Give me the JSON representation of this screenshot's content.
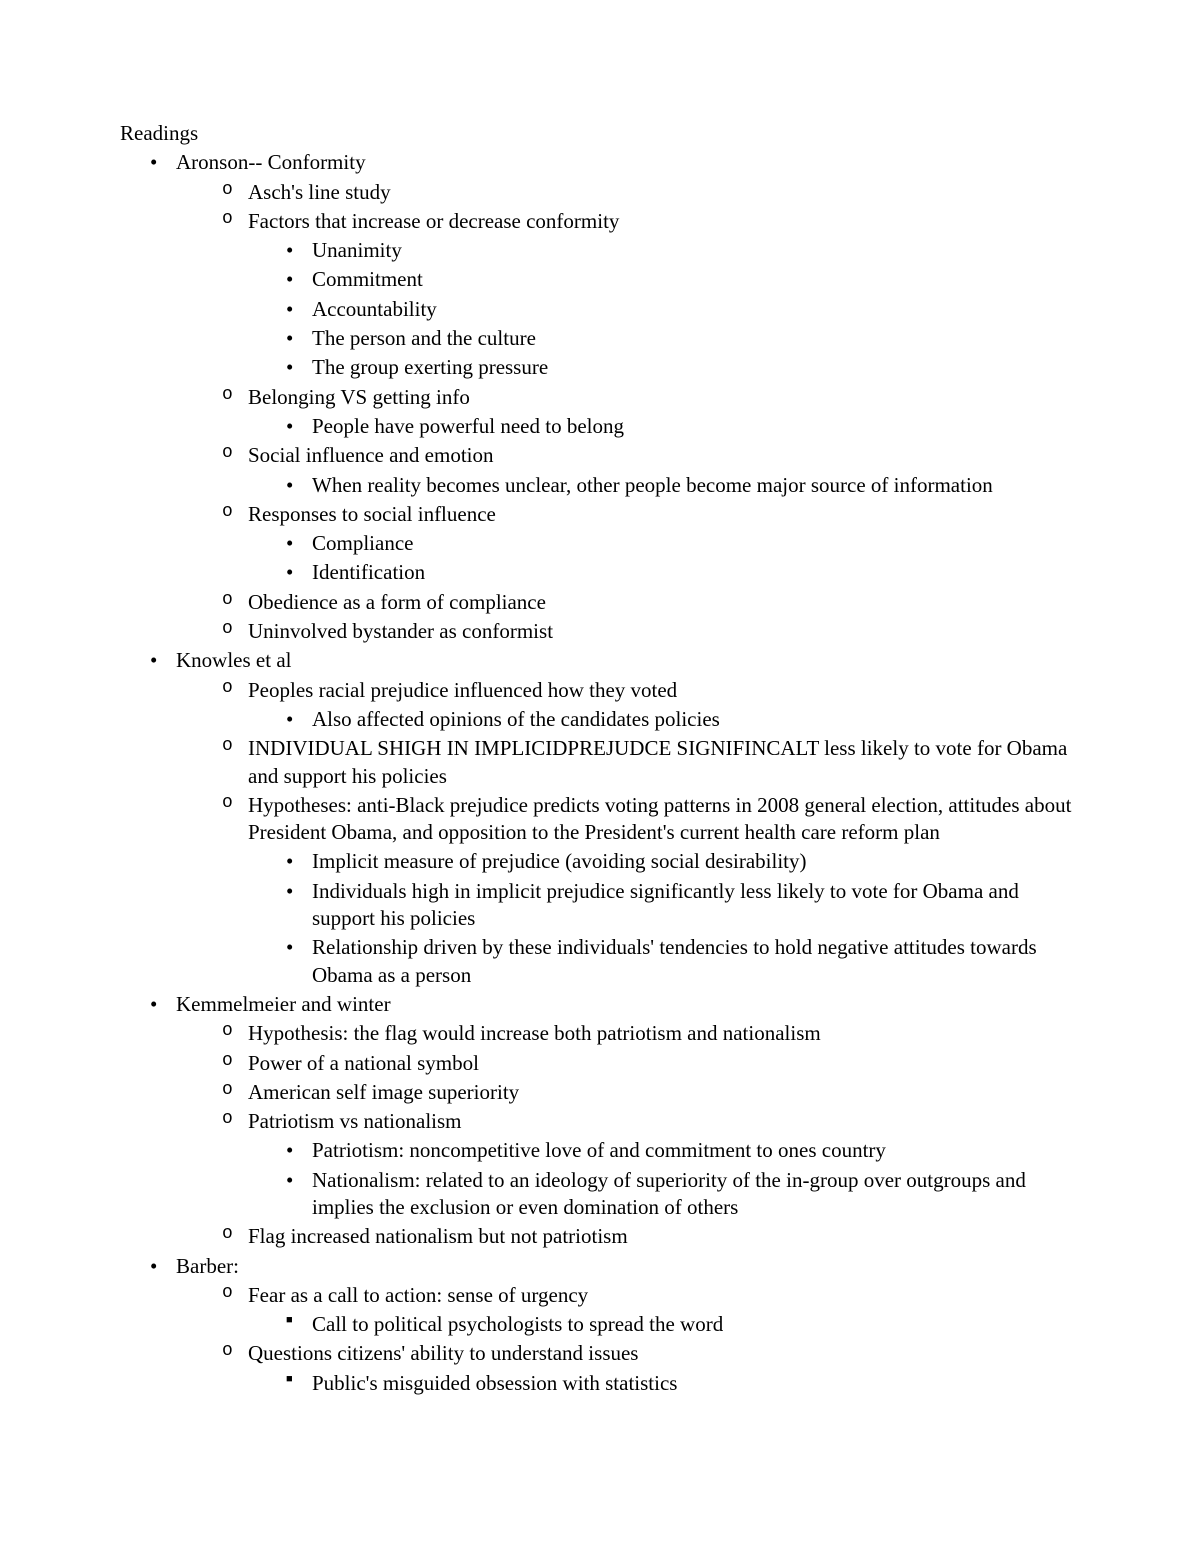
{
  "heading": "Readings",
  "items": [
    {
      "text": "Aronson-- Conformity",
      "children": [
        {
          "text": "Asch's line study"
        },
        {
          "text": "Factors that increase or decrease conformity",
          "children": [
            {
              "text": "Unanimity"
            },
            {
              "text": "Commitment"
            },
            {
              "text": "Accountability"
            },
            {
              "text": "The person and the culture"
            },
            {
              "text": "The group exerting pressure"
            }
          ]
        },
        {
          "text": "Belonging VS getting info",
          "children": [
            {
              "text": "People have powerful need to belong"
            }
          ]
        },
        {
          "text": "Social influence and emotion",
          "children": [
            {
              "text": "When reality becomes unclear, other people become major source of information"
            }
          ]
        },
        {
          "text": "Responses to social influence",
          "children": [
            {
              "text": "Compliance"
            },
            {
              "text": "Identification"
            }
          ]
        },
        {
          "text": "Obedience as a form of compliance"
        },
        {
          "text": "Uninvolved bystander as conformist"
        }
      ]
    },
    {
      "text": "Knowles et al",
      "children": [
        {
          "text": "Peoples racial prejudice influenced how they voted",
          "children": [
            {
              "text": "Also affected opinions of the candidates policies"
            }
          ]
        },
        {
          "text": "INDIVIDUAL SHIGH IN IMPLICIDPREJUDCE SIGNIFINCALT less likely to vote for Obama and support his policies"
        },
        {
          "text": "Hypotheses: anti-Black prejudice predicts voting patterns in 2008 general election, attitudes about President Obama, and opposition to the President's current health care reform plan",
          "children": [
            {
              "text": "Implicit measure of prejudice (avoiding social desirability)"
            },
            {
              "text": "Individuals high in implicit prejudice significantly less likely to vote for Obama and support his policies"
            },
            {
              "text": "Relationship driven by these individuals' tendencies to hold negative attitudes towards Obama as a person"
            }
          ]
        }
      ]
    },
    {
      "text": "Kemmelmeier and winter",
      "children": [
        {
          "text": "Hypothesis: the flag would increase both patriotism and nationalism"
        },
        {
          "text": "Power of a national symbol"
        },
        {
          "text": "American self image superiority"
        },
        {
          "text": "Patriotism vs nationalism",
          "children": [
            {
              "text": "Patriotism: noncompetitive love of and commitment to ones country"
            },
            {
              "text": "Nationalism: related to an ideology of superiority of the in-group over outgroups and implies the exclusion or even domination of others"
            }
          ]
        },
        {
          "text": "Flag increased nationalism but not patriotism"
        }
      ]
    },
    {
      "text": "Barber:",
      "children": [
        {
          "text": "Fear as a call to action: sense of urgency",
          "children": [
            {
              "text": "Call to political psychologists to spread the word",
              "marker": "sq"
            }
          ]
        },
        {
          "text": "Questions citizens' ability to understand issues",
          "children": [
            {
              "text": "Public's misguided obsession with statistics",
              "marker": "sq"
            }
          ]
        }
      ]
    }
  ]
}
